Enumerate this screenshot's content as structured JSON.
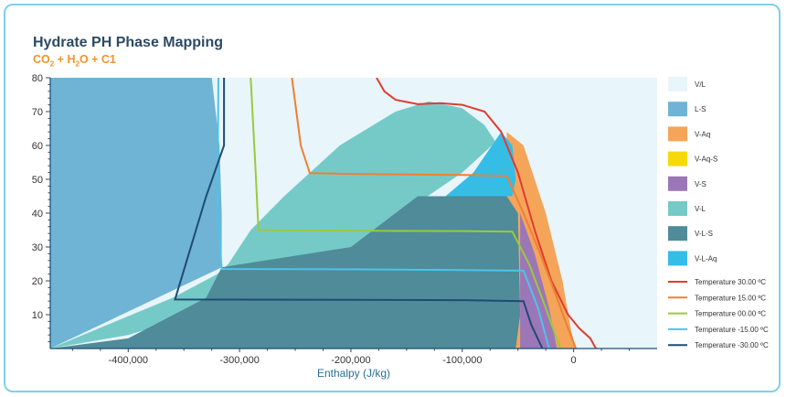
{
  "chart_data": {
    "type": "area",
    "title": "Hydrate PH Phase Mapping",
    "subtitle_parts": [
      "CO",
      "2",
      " + H",
      "2",
      "O + C1"
    ],
    "xlabel": "Enthalpy (J/kg)",
    "ylabel": "",
    "xlim": [
      -470000,
      75000
    ],
    "ylim": [
      0,
      80
    ],
    "xticks": [
      -400000,
      -300000,
      -200000,
      -100000,
      0
    ],
    "xtick_labels": [
      "-400,000",
      "-300,000",
      "-200,000",
      "-100,000",
      "0"
    ],
    "yticks": [
      10,
      20,
      30,
      40,
      50,
      60,
      70,
      80
    ],
    "legend_position": "right",
    "regions": [
      {
        "name": "V/L",
        "color": "#e8f5fa"
      },
      {
        "name": "L-S",
        "color": "#6fb3d5"
      },
      {
        "name": "V-Aq",
        "color": "#f4a55a"
      },
      {
        "name": "V-Aq-S",
        "color": "#f5d90a"
      },
      {
        "name": "V-S",
        "color": "#9b77b8"
      },
      {
        "name": "V-L",
        "color": "#75cac8"
      },
      {
        "name": "V-L-S",
        "color": "#4f8b98"
      },
      {
        "name": "V-L-Aq",
        "color": "#35bde6"
      }
    ],
    "series": [
      {
        "name": "Temperature 30.00 ºC",
        "color": "#e03c31",
        "points": [
          [
            -177000,
            80
          ],
          [
            -170000,
            76
          ],
          [
            -160000,
            73.5
          ],
          [
            -140000,
            72.2
          ],
          [
            -120000,
            72.5
          ],
          [
            -100000,
            72
          ],
          [
            -80000,
            70
          ],
          [
            -65000,
            64
          ],
          [
            -50000,
            52
          ],
          [
            -35000,
            35
          ],
          [
            -20000,
            20
          ],
          [
            -5000,
            10
          ],
          [
            5000,
            6
          ],
          [
            15000,
            3
          ],
          [
            20000,
            0
          ]
        ]
      },
      {
        "name": "Temperature 15.00 ºC",
        "color": "#f07f32",
        "points": [
          [
            -253000,
            80
          ],
          [
            -245000,
            60
          ],
          [
            -237000,
            51.8
          ],
          [
            -200000,
            51.6
          ],
          [
            -150000,
            51.4
          ],
          [
            -100000,
            51.3
          ],
          [
            -60000,
            51
          ],
          [
            -45000,
            40
          ],
          [
            -30000,
            28
          ],
          [
            -15000,
            15
          ],
          [
            -5000,
            6
          ],
          [
            2000,
            0
          ]
        ]
      },
      {
        "name": "Temperature 00.00 ºC",
        "color": "#9ac93d",
        "points": [
          [
            -290000,
            80
          ],
          [
            -286000,
            55
          ],
          [
            -283000,
            35
          ],
          [
            -200000,
            34.8
          ],
          [
            -100000,
            34.7
          ],
          [
            -55000,
            34.5
          ],
          [
            -40000,
            25
          ],
          [
            -25000,
            12
          ],
          [
            -12000,
            0
          ]
        ]
      },
      {
        "name": "Temperature -15.00 ºC",
        "color": "#4fc3e8",
        "points": [
          [
            -319000,
            80
          ],
          [
            -320000,
            40
          ],
          [
            -316000,
            23.5
          ],
          [
            -200000,
            23.4
          ],
          [
            -100000,
            23.2
          ],
          [
            -45000,
            23
          ],
          [
            -32000,
            12
          ],
          [
            -22000,
            0
          ]
        ]
      },
      {
        "name": "Temperature -30.00 ºC",
        "color": "#1f4b73",
        "points": [
          [
            -314000,
            80
          ],
          [
            -314000,
            60
          ],
          [
            -330000,
            45
          ],
          [
            -358000,
            14.5
          ],
          [
            -200000,
            14.4
          ],
          [
            -100000,
            14.3
          ],
          [
            -45000,
            14
          ],
          [
            -38000,
            7
          ],
          [
            -28000,
            0
          ]
        ]
      }
    ]
  }
}
